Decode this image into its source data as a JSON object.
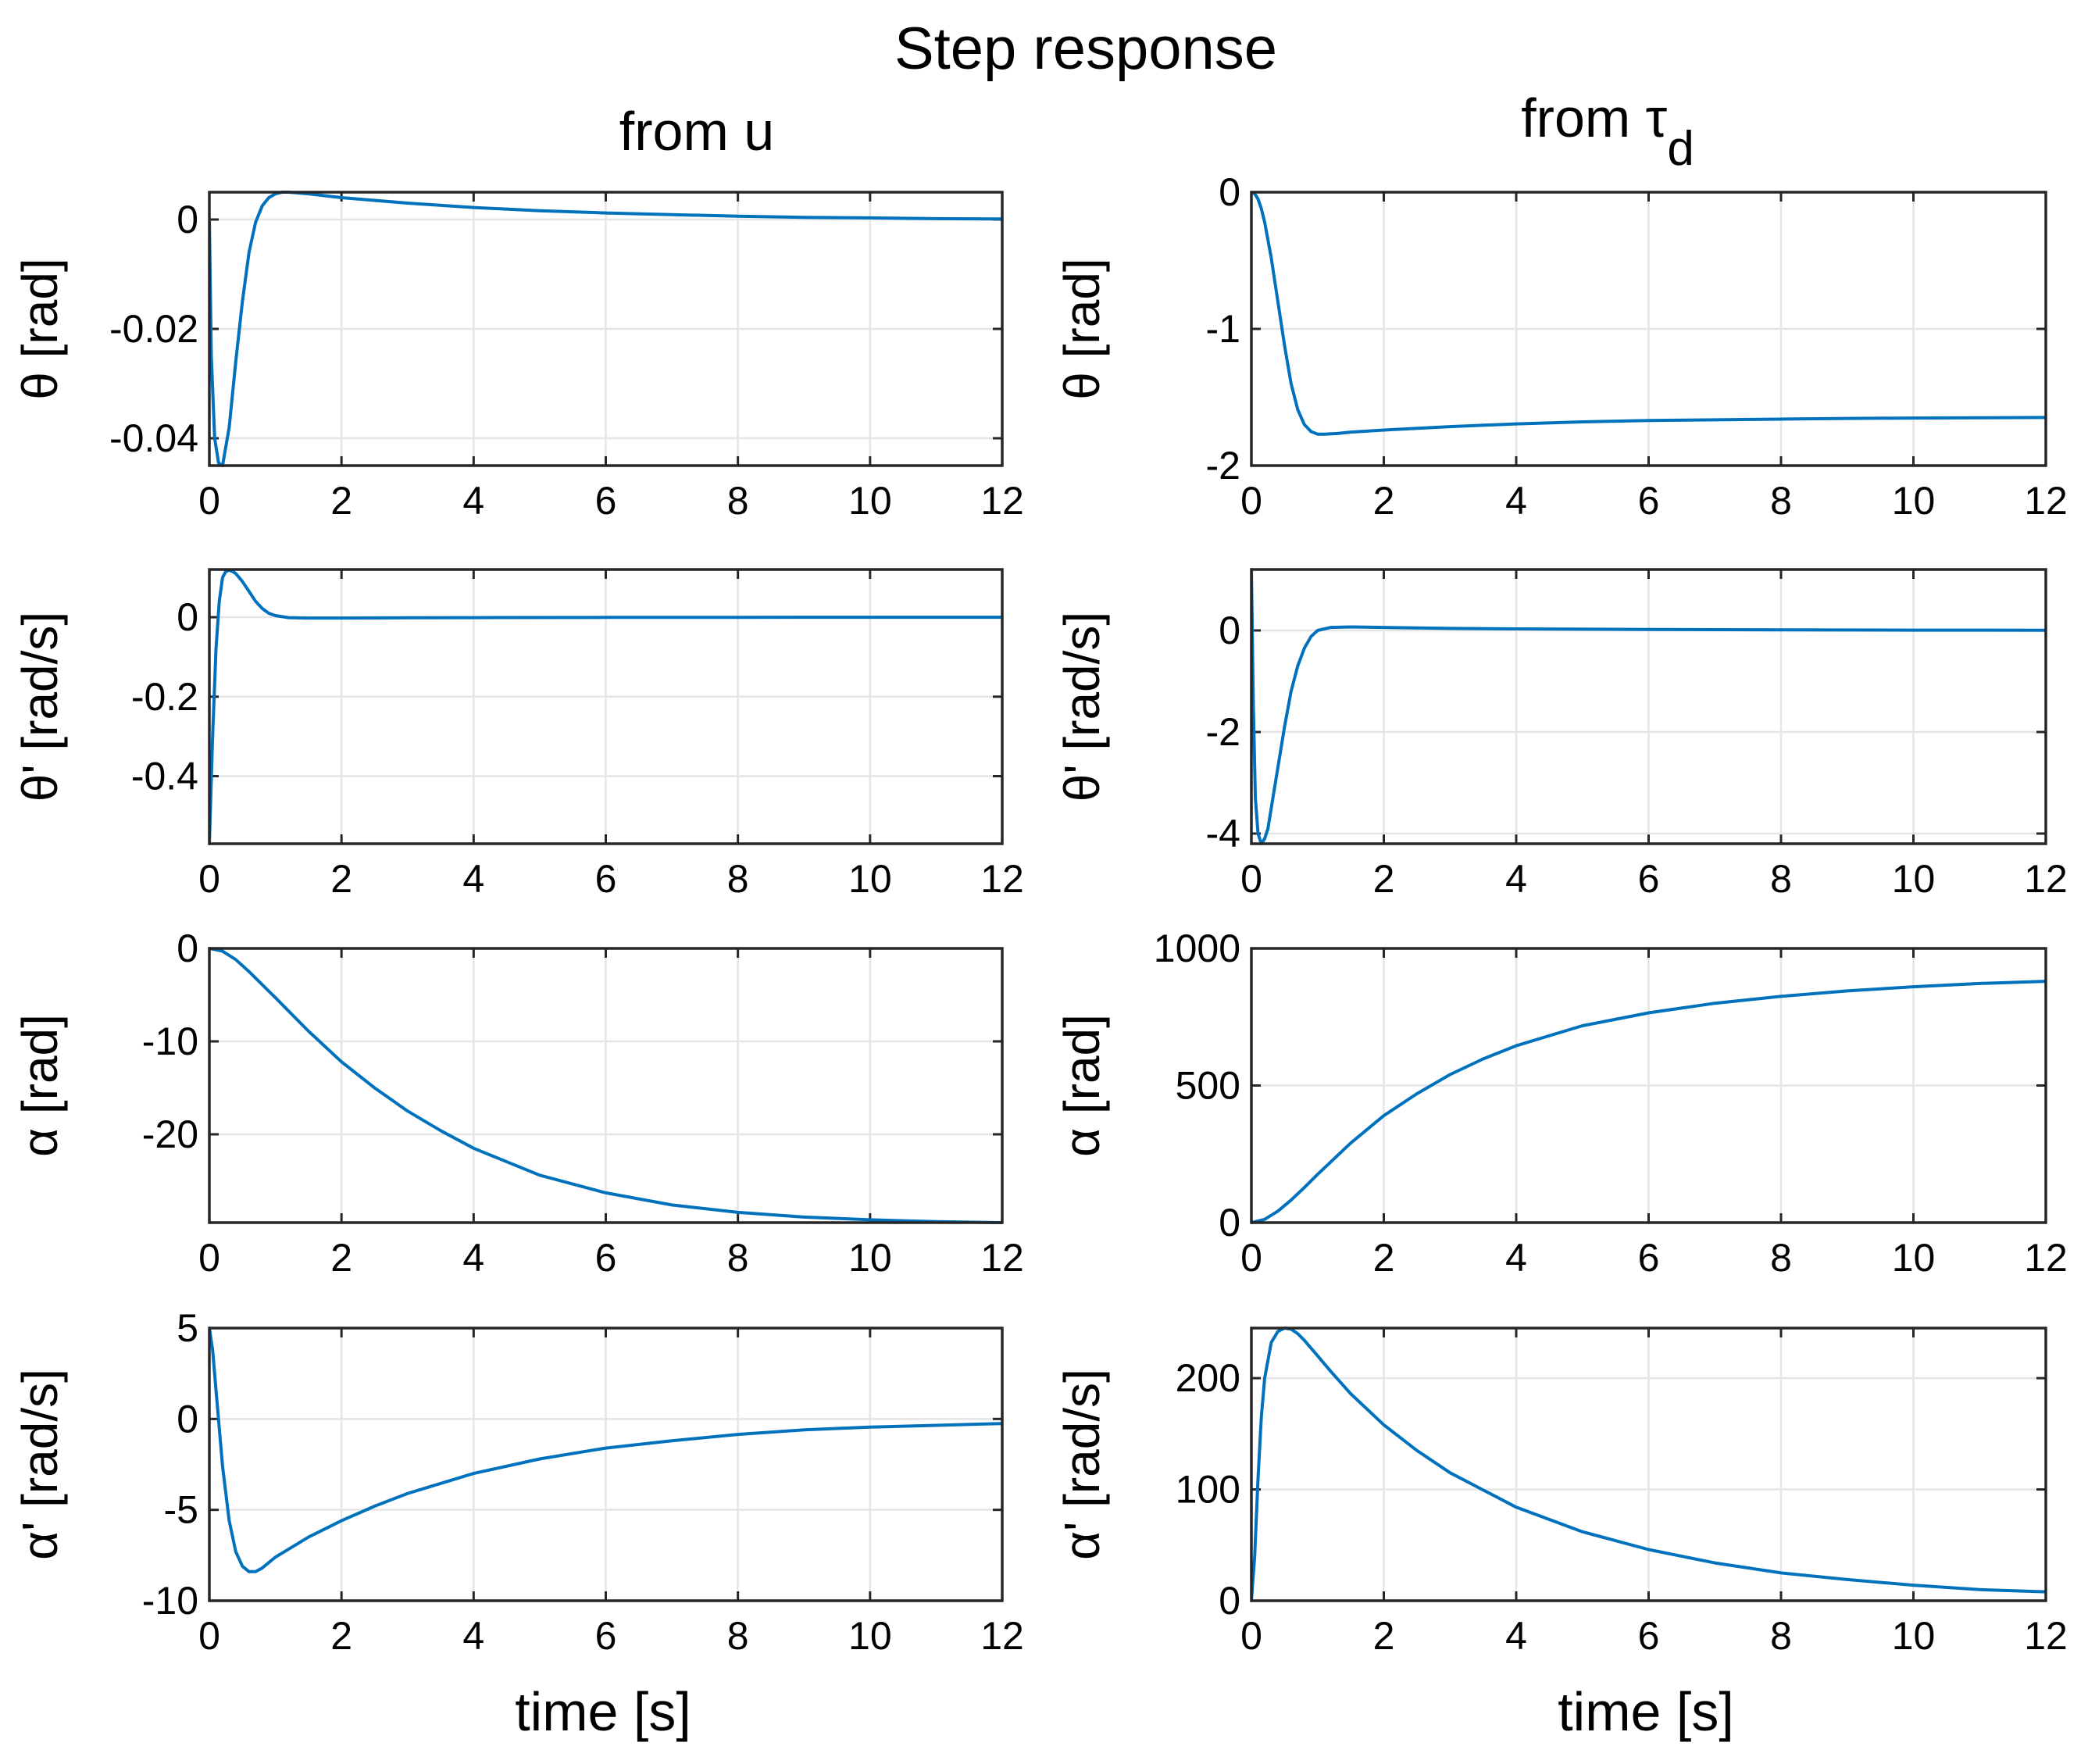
{
  "figure": {
    "title": "Step response",
    "col_titles": [
      "from u",
      "from τ"
    ],
    "col_title_subscript": "d",
    "xlabel": "time [s]",
    "line_color": "#0072BD",
    "grid_color": "#e5e5e5",
    "axis_color": "#262626"
  },
  "chart_data": [
    {
      "type": "line",
      "ylabel": "θ [rad]",
      "xlim": [
        0,
        12
      ],
      "ylim": [
        -0.045,
        0.005
      ],
      "xticks": [
        0,
        2,
        4,
        6,
        8,
        10,
        12
      ],
      "xtick_labels": [
        "0",
        "2",
        "4",
        "6",
        "8",
        "10",
        "12"
      ],
      "yticks": [
        -0.04,
        -0.02,
        0
      ],
      "ytick_labels": [
        "-0.04",
        "-0.02",
        "0"
      ],
      "series": [
        {
          "name": "θ from u",
          "x": [
            0,
            0.03,
            0.08,
            0.14,
            0.2,
            0.3,
            0.4,
            0.5,
            0.6,
            0.7,
            0.8,
            0.9,
            1,
            1.1,
            1.2,
            1.5,
            2,
            3,
            4,
            5,
            6,
            7,
            8,
            9,
            10,
            11,
            12
          ],
          "y": [
            0,
            -0.025,
            -0.04,
            -0.0445,
            -0.045,
            -0.038,
            -0.026,
            -0.015,
            -0.006,
            -0.0005,
            0.0025,
            0.004,
            0.0047,
            0.005,
            0.005,
            0.0047,
            0.004,
            0.003,
            0.0022,
            0.0016,
            0.0012,
            0.0009,
            0.0006,
            0.0004,
            0.0003,
            0.00015,
            0.0001
          ]
        }
      ]
    },
    {
      "type": "line",
      "ylabel": "θ [rad]",
      "xlim": [
        0,
        12
      ],
      "ylim": [
        -2,
        0
      ],
      "xticks": [
        0,
        2,
        4,
        6,
        8,
        10,
        12
      ],
      "xtick_labels": [
        "0",
        "2",
        "4",
        "6",
        "8",
        "10",
        "12"
      ],
      "yticks": [
        -2,
        -1,
        0
      ],
      "ytick_labels": [
        "-2",
        "-1",
        "0"
      ],
      "series": [
        {
          "name": "θ from τd",
          "x": [
            0,
            0.05,
            0.1,
            0.15,
            0.2,
            0.3,
            0.4,
            0.5,
            0.6,
            0.7,
            0.8,
            0.9,
            1,
            1.1,
            1.3,
            1.5,
            2,
            3,
            4,
            5,
            6,
            7,
            8,
            9,
            10,
            11,
            12
          ],
          "y": [
            0,
            -0.01,
            -0.05,
            -0.12,
            -0.22,
            -0.48,
            -0.8,
            -1.12,
            -1.4,
            -1.59,
            -1.7,
            -1.75,
            -1.77,
            -1.77,
            -1.765,
            -1.755,
            -1.74,
            -1.715,
            -1.695,
            -1.68,
            -1.67,
            -1.665,
            -1.66,
            -1.655,
            -1.652,
            -1.65,
            -1.648
          ]
        }
      ]
    },
    {
      "type": "line",
      "ylabel": "θ' [rad/s]",
      "xlim": [
        0,
        12
      ],
      "ylim": [
        -0.57,
        0.12
      ],
      "xticks": [
        0,
        2,
        4,
        6,
        8,
        10,
        12
      ],
      "xtick_labels": [
        "0",
        "2",
        "4",
        "6",
        "8",
        "10",
        "12"
      ],
      "yticks": [
        -0.4,
        -0.2,
        0
      ],
      "ytick_labels": [
        "-0.4",
        "-0.2",
        "0"
      ],
      "series": [
        {
          "name": "θ' from u",
          "x": [
            0,
            0.05,
            0.1,
            0.15,
            0.2,
            0.25,
            0.3,
            0.35,
            0.4,
            0.5,
            0.6,
            0.7,
            0.8,
            0.9,
            1,
            1.2,
            1.5,
            2,
            3,
            4,
            6,
            8,
            10,
            12
          ],
          "y": [
            -0.57,
            -0.3,
            -0.08,
            0.04,
            0.1,
            0.115,
            0.118,
            0.115,
            0.11,
            0.09,
            0.065,
            0.04,
            0.022,
            0.01,
            0.004,
            -0.001,
            -0.002,
            -0.002,
            -0.0015,
            -0.001,
            -0.0005,
            -0.0003,
            -0.0002,
            -0.0001
          ]
        }
      ]
    },
    {
      "type": "line",
      "ylabel": "θ' [rad/s]",
      "xlim": [
        0,
        12
      ],
      "ylim": [
        -4.2,
        1.2
      ],
      "xticks": [
        0,
        2,
        4,
        6,
        8,
        10,
        12
      ],
      "xtick_labels": [
        "0",
        "2",
        "4",
        "6",
        "8",
        "10",
        "12"
      ],
      "yticks": [
        -4,
        -2,
        0
      ],
      "ytick_labels": [
        "-4",
        "-2",
        "0"
      ],
      "series": [
        {
          "name": "θ' from τd",
          "x": [
            0,
            0.03,
            0.06,
            0.1,
            0.15,
            0.2,
            0.25,
            0.3,
            0.4,
            0.5,
            0.6,
            0.7,
            0.8,
            0.9,
            1,
            1.2,
            1.5,
            2,
            3,
            4,
            6,
            8,
            10,
            12
          ],
          "y": [
            1.2,
            -1.5,
            -3.3,
            -4,
            -4.2,
            -4.1,
            -3.9,
            -3.5,
            -2.7,
            -1.9,
            -1.2,
            -0.7,
            -0.35,
            -0.12,
            0.0,
            0.06,
            0.07,
            0.06,
            0.04,
            0.03,
            0.02,
            0.012,
            0.006,
            0.004
          ]
        }
      ]
    },
    {
      "type": "line",
      "ylabel": "α [rad]",
      "xlim": [
        0,
        12
      ],
      "ylim": [
        -29.5,
        0
      ],
      "xticks": [
        0,
        2,
        4,
        6,
        8,
        10,
        12
      ],
      "xtick_labels": [
        "0",
        "2",
        "4",
        "6",
        "8",
        "10",
        "12"
      ],
      "yticks": [
        -20,
        -10,
        0
      ],
      "ytick_labels": [
        "-20",
        "-10",
        "0"
      ],
      "series": [
        {
          "name": "α from u",
          "x": [
            0,
            0.2,
            0.4,
            0.6,
            0.8,
            1,
            1.5,
            2,
            2.5,
            3,
            3.5,
            4,
            5,
            6,
            7,
            8,
            9,
            10,
            11,
            12
          ],
          "y": [
            0,
            -0.3,
            -1.2,
            -2.5,
            -3.9,
            -5.3,
            -8.9,
            -12.2,
            -15.0,
            -17.5,
            -19.6,
            -21.5,
            -24.4,
            -26.3,
            -27.6,
            -28.4,
            -28.9,
            -29.2,
            -29.4,
            -29.5
          ]
        }
      ]
    },
    {
      "type": "line",
      "ylabel": "α [rad]",
      "xlim": [
        0,
        12
      ],
      "ylim": [
        0,
        1000
      ],
      "xticks": [
        0,
        2,
        4,
        6,
        8,
        10,
        12
      ],
      "xtick_labels": [
        "0",
        "2",
        "4",
        "6",
        "8",
        "10",
        "12"
      ],
      "yticks": [
        0,
        500,
        1000
      ],
      "ytick_labels": [
        "0",
        "500",
        "1000"
      ],
      "series": [
        {
          "name": "α from τd",
          "x": [
            0,
            0.2,
            0.4,
            0.6,
            0.8,
            1,
            1.5,
            2,
            2.5,
            3,
            3.5,
            4,
            5,
            6,
            7,
            8,
            9,
            10,
            11,
            12
          ],
          "y": [
            0,
            12,
            42,
            82,
            128,
            176,
            290,
            390,
            470,
            540,
            597,
            645,
            718,
            765,
            800,
            825,
            845,
            860,
            872,
            880
          ]
        }
      ]
    },
    {
      "type": "line",
      "ylabel": "α' [rad/s]",
      "xlim": [
        0,
        12
      ],
      "ylim": [
        -10,
        5
      ],
      "xticks": [
        0,
        2,
        4,
        6,
        8,
        10,
        12
      ],
      "xtick_labels": [
        "0",
        "2",
        "4",
        "6",
        "8",
        "10",
        "12"
      ],
      "yticks": [
        -10,
        -5,
        0,
        5
      ],
      "ytick_labels": [
        "-10",
        "-5",
        "0",
        "5"
      ],
      "series": [
        {
          "name": "α' from u",
          "x": [
            0,
            0.05,
            0.1,
            0.2,
            0.3,
            0.4,
            0.5,
            0.6,
            0.7,
            0.8,
            1,
            1.5,
            2,
            2.5,
            3,
            4,
            5,
            6,
            7,
            8,
            9,
            10,
            11,
            12
          ],
          "y": [
            5,
            3.8,
            1.6,
            -2.6,
            -5.6,
            -7.3,
            -8.1,
            -8.4,
            -8.4,
            -8.2,
            -7.6,
            -6.5,
            -5.6,
            -4.8,
            -4.1,
            -3.0,
            -2.2,
            -1.6,
            -1.2,
            -0.85,
            -0.6,
            -0.45,
            -0.35,
            -0.25
          ]
        }
      ]
    },
    {
      "type": "line",
      "ylabel": "α' [rad/s]",
      "xlim": [
        0,
        12
      ],
      "ylim": [
        0,
        245
      ],
      "xticks": [
        0,
        2,
        4,
        6,
        8,
        10,
        12
      ],
      "xtick_labels": [
        "0",
        "2",
        "4",
        "6",
        "8",
        "10",
        "12"
      ],
      "yticks": [
        0,
        100,
        200
      ],
      "ytick_labels": [
        "0",
        "100",
        "200"
      ],
      "series": [
        {
          "name": "α' from τd",
          "x": [
            0,
            0.05,
            0.1,
            0.15,
            0.2,
            0.3,
            0.4,
            0.5,
            0.6,
            0.7,
            0.8,
            1,
            1.2,
            1.5,
            2,
            2.5,
            3,
            4,
            5,
            6,
            7,
            8,
            9,
            10,
            11,
            12
          ],
          "y": [
            0,
            40,
            110,
            165,
            200,
            232,
            242,
            245,
            244,
            240,
            234,
            220,
            206,
            186,
            158,
            135,
            115,
            84,
            62,
            46,
            34,
            25,
            19,
            14,
            10,
            8
          ]
        }
      ]
    }
  ]
}
